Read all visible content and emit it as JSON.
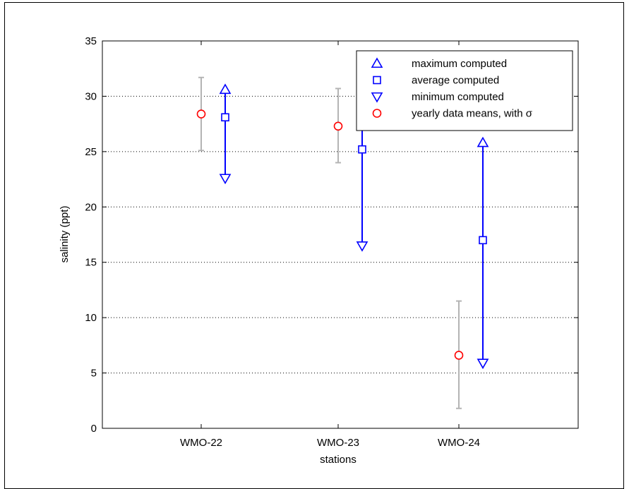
{
  "chart_data": {
    "type": "scatter",
    "xlabel": "stations",
    "ylabel": "salinity (ppt)",
    "ylim": [
      0,
      35
    ],
    "yticks": [
      "0",
      "5",
      "10",
      "15",
      "20",
      "25",
      "30",
      "35"
    ],
    "categories": [
      "WMO-22",
      "WMO-23",
      "WMO-24"
    ],
    "grid": "horizontal dotted",
    "legend_position": "top-right",
    "series": [
      {
        "name": "maximum computed",
        "marker": "triangle-up",
        "color": "#0000ff",
        "values": [
          30.6,
          30.5,
          25.8
        ]
      },
      {
        "name": "average computed",
        "marker": "square",
        "color": "#0000ff",
        "values": [
          28.1,
          25.2,
          17.0
        ]
      },
      {
        "name": "minimum computed",
        "marker": "triangle-down",
        "color": "#0000ff",
        "values": [
          22.6,
          16.5,
          5.9
        ]
      },
      {
        "name": "yearly data means, with σ",
        "marker": "circle",
        "color": "#ff0000",
        "values": [
          28.4,
          27.3,
          6.6
        ],
        "sigma_low": [
          25.1,
          24.0,
          1.8
        ],
        "sigma_high": [
          31.7,
          30.7,
          11.5
        ],
        "errorbar_color": "#b4b4b4"
      }
    ]
  }
}
